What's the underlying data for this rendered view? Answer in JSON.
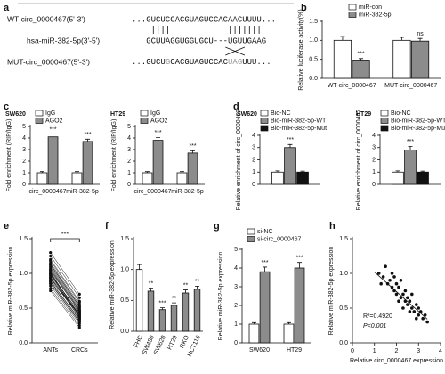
{
  "alignment": {
    "panel": "a",
    "rows": [
      {
        "label": "WT-circ_0000467(5'-3')",
        "sequence": "...GUCUCCACGUAGUCCACAACUUUU..."
      },
      {
        "label": "hsa-miR-382-5p(3'-5')",
        "sequence": "GCUUAGGUGGUGCU---UGUUGAAG"
      },
      {
        "label": "MUT-circ_0000467(5'-3')",
        "segments": [
          "...GUCU",
          "G",
          "CACGUAGUCCAC",
          "UAG",
          "UUU..."
        ]
      }
    ]
  },
  "chart_data": [
    {
      "type": "bar",
      "panel": "b",
      "y_label": "Relative luciferase activity(%)",
      "categories": [
        "WT-circ_0000467",
        "MUT-circ_0000467"
      ],
      "series": [
        {
          "name": "miR-con",
          "color": "#ffffff",
          "values": [
            1.0,
            1.0
          ],
          "errors": [
            0.1,
            0.08
          ]
        },
        {
          "name": "miR-382-5p",
          "color": "#8c8c8c",
          "values": [
            0.48,
            0.98
          ],
          "errors": [
            0.04,
            0.07
          ],
          "annotations": [
            "***",
            "ns"
          ]
        }
      ],
      "ylim": [
        0,
        1.5
      ],
      "yticks": [
        {
          "value": 0,
          "label": "0.0"
        },
        0.5,
        {
          "value": 1,
          "label": "1.0"
        },
        1.5
      ]
    },
    {
      "type": "bar",
      "panel": "c",
      "title": "SW620",
      "y_label": "Fold enrichment (RIP/IgG)",
      "categories": [
        "circ_0000467",
        "miR-382-5p"
      ],
      "series": [
        {
          "name": "IgG",
          "color": "#ffffff",
          "values": [
            1,
            1
          ],
          "errors": [
            0.1,
            0.1
          ]
        },
        {
          "name": "AGO2",
          "color": "#8c8c8c",
          "values": [
            4.1,
            3.7
          ],
          "errors": [
            0.25,
            0.2
          ],
          "annotations": [
            "***",
            "***"
          ]
        }
      ],
      "ylim": [
        0,
        5
      ],
      "yticks": [
        0,
        1,
        2,
        3,
        4,
        5
      ]
    },
    {
      "type": "bar",
      "title": "HT29",
      "y_label": "Fold enrichment (RIP/IgG)",
      "categories": [
        "circ_0000467",
        "miR-382-5p"
      ],
      "series": [
        {
          "name": "IgG",
          "color": "#ffffff",
          "values": [
            1,
            1
          ],
          "errors": [
            0.1,
            0.1
          ]
        },
        {
          "name": "AGO2",
          "color": "#8c8c8c",
          "values": [
            3.8,
            2.7
          ],
          "errors": [
            0.25,
            0.2
          ],
          "annotations": [
            "***",
            "***"
          ]
        }
      ],
      "ylim": [
        0,
        5
      ],
      "yticks": [
        0,
        1,
        2,
        3,
        4,
        5
      ]
    },
    {
      "type": "bar",
      "panel": "d",
      "title": "SW620",
      "y_label": "Relative enrichment of circ_0000467",
      "categories": [
        null
      ],
      "series": [
        {
          "name": "Bio-NC",
          "color": "#ffffff",
          "values": [
            1
          ],
          "errors": [
            0.1
          ]
        },
        {
          "name": "Bio-miR-382-5p-WT",
          "color": "#8c8c8c",
          "values": [
            3.0
          ],
          "errors": [
            0.25
          ],
          "annotations": [
            "***"
          ]
        },
        {
          "name": "Bio-miR-382-5p-Mut",
          "color": "#111111",
          "values": [
            1.0
          ],
          "errors": [
            0.08
          ]
        }
      ],
      "ylim": [
        0,
        4
      ],
      "yticks": [
        0,
        1,
        2,
        3,
        4
      ]
    },
    {
      "type": "bar",
      "title": "HT29",
      "y_label": "Relative enrichment of circ_0000467",
      "categories": [
        null
      ],
      "series": [
        {
          "name": "Bio-NC",
          "color": "#ffffff",
          "values": [
            1
          ],
          "errors": [
            0.1
          ]
        },
        {
          "name": "Bio-miR-382-5p-WT",
          "color": "#8c8c8c",
          "values": [
            2.8
          ],
          "errors": [
            0.3
          ],
          "annotations": [
            "***"
          ]
        },
        {
          "name": "Bio-miR-382-5p-Mut",
          "color": "#111111",
          "values": [
            1.0
          ],
          "errors": [
            0.08
          ]
        }
      ],
      "ylim": [
        0,
        4
      ],
      "yticks": [
        0,
        1,
        2,
        3,
        4
      ]
    },
    {
      "type": "paired",
      "panel": "e",
      "y_label": "Relative miR-382-5p expression",
      "categories": [
        "ANTs",
        "CRCs"
      ],
      "color": "#111111",
      "annotation": "***",
      "values": [
        [
          1.05,
          0.98,
          1.12,
          0.85,
          1.2,
          0.92,
          1.0,
          0.78,
          1.15,
          0.95,
          1.08,
          0.88,
          1.25,
          0.97,
          1.02,
          0.82,
          1.1,
          0.9,
          1.3,
          0.94,
          1.06,
          0.86,
          1.18,
          0.99,
          0.75,
          1.03,
          0.93,
          1.13,
          0.89,
          1.01
        ],
        [
          0.45,
          0.38,
          0.52,
          0.3,
          0.6,
          0.42,
          0.35,
          0.25,
          0.55,
          0.4,
          0.48,
          0.33,
          0.65,
          0.44,
          0.37,
          0.28,
          0.5,
          0.41,
          0.7,
          0.36,
          0.47,
          0.31,
          0.58,
          0.43,
          0.22,
          0.46,
          0.39,
          0.53,
          0.34,
          0.4
        ]
      ],
      "ylim": [
        0,
        1.5
      ],
      "yticks": [
        {
          "value": 0,
          "label": "0.0"
        },
        0.5,
        {
          "value": 1,
          "label": "1.0"
        },
        1.5
      ]
    },
    {
      "type": "bar",
      "panel": "f",
      "y_label": "Relative miR-382-5p expression",
      "categories": [
        "FHC",
        "SW480",
        "SW620",
        "HT29",
        "RKO",
        "HCT116"
      ],
      "series": [
        {
          "colors": [
            "#ffffff",
            "#8c8c8c",
            "#8c8c8c",
            "#8c8c8c",
            "#8c8c8c",
            "#8c8c8c"
          ],
          "values": [
            1.0,
            0.65,
            0.35,
            0.42,
            0.62,
            0.68
          ],
          "errors": [
            0.08,
            0.05,
            0.03,
            0.04,
            0.05,
            0.05
          ],
          "annotations": [
            null,
            "**",
            "***",
            "**",
            "**",
            "**"
          ]
        }
      ],
      "ylim": [
        0,
        1.5
      ],
      "yticks": [
        {
          "value": 0,
          "label": "0.0"
        },
        0.5,
        {
          "value": 1,
          "label": "1.0"
        },
        1.5
      ]
    },
    {
      "type": "bar",
      "panel": "g",
      "y_label": "Relative miR-382-5p expression",
      "categories": [
        "SW620",
        "HT29"
      ],
      "series": [
        {
          "name": "si-NC",
          "color": "#ffffff",
          "values": [
            1,
            1
          ],
          "errors": [
            0.08,
            0.08
          ]
        },
        {
          "name": "si-circ_0000467",
          "color": "#8c8c8c",
          "values": [
            3.8,
            4.0
          ],
          "errors": [
            0.25,
            0.3
          ],
          "annotations": [
            "***",
            "***"
          ]
        }
      ],
      "ylim": [
        0,
        5
      ],
      "yticks": [
        0,
        1,
        2,
        3,
        4,
        5
      ]
    },
    {
      "type": "scatter",
      "panel": "h",
      "x_label": "Relative circ_0000467 expression",
      "y_label": "Relative miR-382-5p expression",
      "color": "#111111",
      "x": [
        1.2,
        1.4,
        1.5,
        1.6,
        1.7,
        1.8,
        1.8,
        1.9,
        2.0,
        2.0,
        2.1,
        2.2,
        2.2,
        2.3,
        2.4,
        2.4,
        2.5,
        2.5,
        2.6,
        2.7,
        2.7,
        2.8,
        2.9,
        3.0,
        3.0,
        3.1,
        3.2,
        3.3,
        1.3,
        2.1,
        2.6,
        2.9,
        3.4,
        1.9,
        2.3
      ],
      "y": [
        1.0,
        0.95,
        1.1,
        0.85,
        0.9,
        0.8,
        1.0,
        0.75,
        0.85,
        0.7,
        0.8,
        0.65,
        0.9,
        0.7,
        0.6,
        0.75,
        0.55,
        0.65,
        0.6,
        0.5,
        0.7,
        0.45,
        0.55,
        0.4,
        0.5,
        0.45,
        0.35,
        0.4,
        0.85,
        0.6,
        0.45,
        0.35,
        0.3,
        0.95,
        0.5
      ],
      "fit_line": {
        "x": [
          1,
          3.4
        ],
        "y": [
          1.02,
          0.34
        ]
      },
      "annotations": [
        "R²=0.4920",
        "P<0.001"
      ],
      "xlim": [
        0,
        4
      ],
      "xticks": [
        0,
        1,
        2,
        3,
        4
      ],
      "ylim": [
        0,
        1.5
      ],
      "yticks": [
        {
          "value": 0,
          "label": "0.0"
        },
        0.5,
        {
          "value": 1,
          "label": "1.0"
        },
        1.5
      ]
    }
  ]
}
